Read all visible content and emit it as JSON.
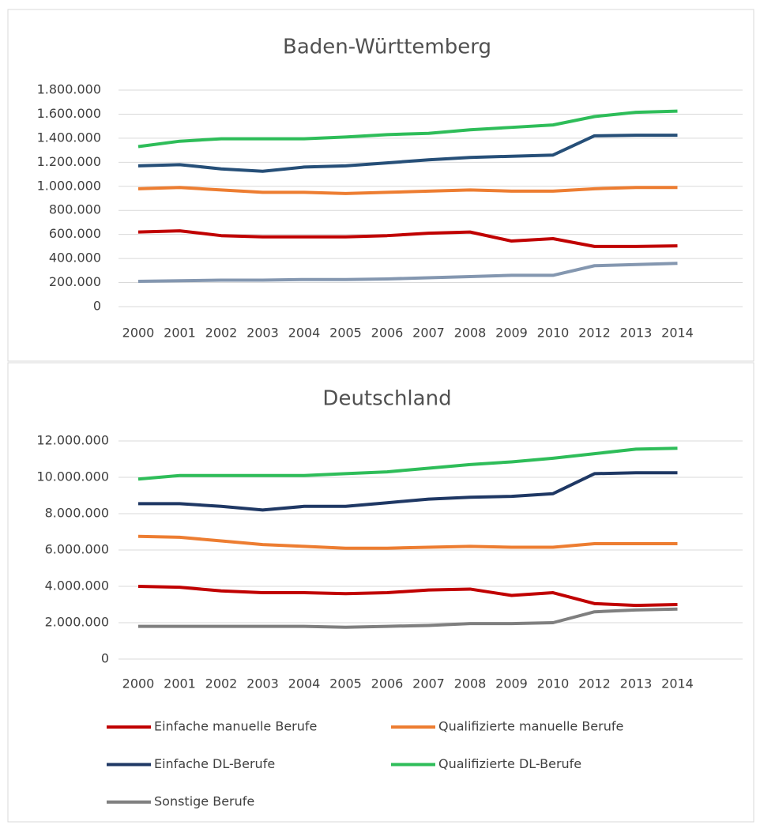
{
  "chart_data": [
    {
      "type": "line",
      "title": "Baden-Württemberg",
      "categories": [
        "2000",
        "2001",
        "2002",
        "2003",
        "2004",
        "2005",
        "2006",
        "2007",
        "2008",
        "2009",
        "2010",
        "2012",
        "2013",
        "2014"
      ],
      "series": [
        {
          "color": "#2ebd59",
          "values": [
            1330000,
            1375000,
            1395000,
            1395000,
            1395000,
            1410000,
            1430000,
            1440000,
            1470000,
            1490000,
            1510000,
            1580000,
            1615000,
            1625000
          ]
        },
        {
          "color": "#264f78",
          "values": [
            1170000,
            1180000,
            1145000,
            1125000,
            1160000,
            1170000,
            1195000,
            1220000,
            1240000,
            1250000,
            1260000,
            1420000,
            1425000,
            1425000
          ]
        },
        {
          "color": "#ed7d31",
          "values": [
            980000,
            990000,
            970000,
            950000,
            950000,
            940000,
            950000,
            960000,
            970000,
            960000,
            960000,
            980000,
            990000,
            990000
          ]
        },
        {
          "color": "#c00000",
          "values": [
            620000,
            630000,
            590000,
            580000,
            580000,
            580000,
            590000,
            610000,
            620000,
            545000,
            565000,
            500000,
            500000,
            505000
          ]
        },
        {
          "color": "#8497b0",
          "values": [
            210000,
            215000,
            220000,
            220000,
            225000,
            225000,
            230000,
            240000,
            250000,
            260000,
            260000,
            340000,
            350000,
            360000
          ]
        }
      ],
      "ylim": [
        0,
        1800000
      ],
      "yticks": [
        0,
        {
          "value": 200000,
          "label": "200.000"
        },
        {
          "value": 400000,
          "label": "400.000"
        },
        {
          "value": 600000,
          "label": "600.000"
        },
        {
          "value": 800000,
          "label": "800.000"
        },
        {
          "value": 1000000,
          "label": "1.000.000"
        },
        {
          "value": 1200000,
          "label": "1.200.000"
        },
        {
          "value": 1400000,
          "label": "1.400.000"
        },
        {
          "value": 1600000,
          "label": "1.600.000"
        },
        {
          "value": 1800000,
          "label": "1.800.000"
        }
      ],
      "grid": true
    },
    {
      "type": "line",
      "title": "Deutschland",
      "categories": [
        "2000",
        "2001",
        "2002",
        "2003",
        "2004",
        "2005",
        "2006",
        "2007",
        "2008",
        "2009",
        "2010",
        "2012",
        "2013",
        "2014"
      ],
      "series": [
        {
          "name": "Einfache manuelle Berufe",
          "color": "#c00000",
          "values": [
            4000000,
            3950000,
            3750000,
            3650000,
            3650000,
            3600000,
            3650000,
            3800000,
            3850000,
            3500000,
            3650000,
            3050000,
            2950000,
            3000000
          ]
        },
        {
          "name": "Qualifizierte manuelle Berufe",
          "color": "#ed7d31",
          "values": [
            6750000,
            6700000,
            6500000,
            6300000,
            6200000,
            6100000,
            6100000,
            6150000,
            6200000,
            6150000,
            6150000,
            6350000,
            6350000,
            6350000
          ]
        },
        {
          "name": "Einfache DL-Berufe",
          "color": "#1f3864",
          "values": [
            8550000,
            8550000,
            8400000,
            8200000,
            8400000,
            8400000,
            8600000,
            8800000,
            8900000,
            8950000,
            9100000,
            10200000,
            10250000,
            10250000
          ]
        },
        {
          "name": "Qualifizierte DL-Berufe",
          "color": "#2ebd59",
          "values": [
            9900000,
            10100000,
            10100000,
            10100000,
            10100000,
            10200000,
            10300000,
            10500000,
            10700000,
            10850000,
            11050000,
            11300000,
            11550000,
            11600000
          ]
        },
        {
          "name": "Sonstige Berufe",
          "color": "#7f7f7f",
          "values": [
            1800000,
            1800000,
            1800000,
            1800000,
            1800000,
            1750000,
            1800000,
            1850000,
            1950000,
            1950000,
            2000000,
            2600000,
            2700000,
            2750000
          ]
        }
      ],
      "ylim": [
        0,
        12000000
      ],
      "yticks": [
        0,
        {
          "value": 2000000,
          "label": "2.000.000"
        },
        {
          "value": 4000000,
          "label": "4.000.000"
        },
        {
          "value": 6000000,
          "label": "6.000.000"
        },
        {
          "value": 8000000,
          "label": "8.000.000"
        },
        {
          "value": 10000000,
          "label": "10.000.000"
        },
        {
          "value": 12000000,
          "label": "12.000.000"
        }
      ],
      "grid": true,
      "legend": "bottom"
    }
  ]
}
